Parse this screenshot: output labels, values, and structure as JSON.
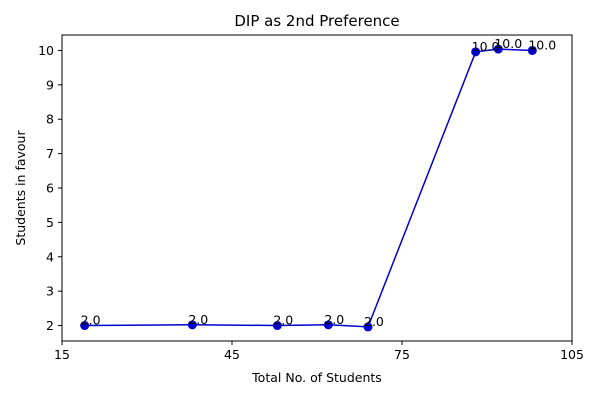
{
  "chart_data": {
    "type": "line",
    "title": "DIP as 2nd Preference",
    "xlabel": "Total No. of Students",
    "ylabel": "Students in favour",
    "xlim": [
      15,
      105
    ],
    "ylim": [
      1.55,
      10.45
    ],
    "xticks": [
      15,
      45,
      75,
      105
    ],
    "yticks": [
      2,
      3,
      4,
      5,
      6,
      7,
      8,
      9,
      10
    ],
    "grid": false,
    "line_color": "#0000cd",
    "series": [
      {
        "x": [
          19,
          38,
          53,
          62,
          69,
          88,
          92,
          98
        ],
        "values": [
          2.0,
          2.02,
          2.0,
          2.02,
          1.96,
          9.96,
          10.04,
          10.0
        ],
        "labels": [
          "2.0",
          "2.0",
          "2.0",
          "2.0",
          "2.0",
          "10.0",
          "10.0",
          "10.0"
        ]
      }
    ]
  }
}
